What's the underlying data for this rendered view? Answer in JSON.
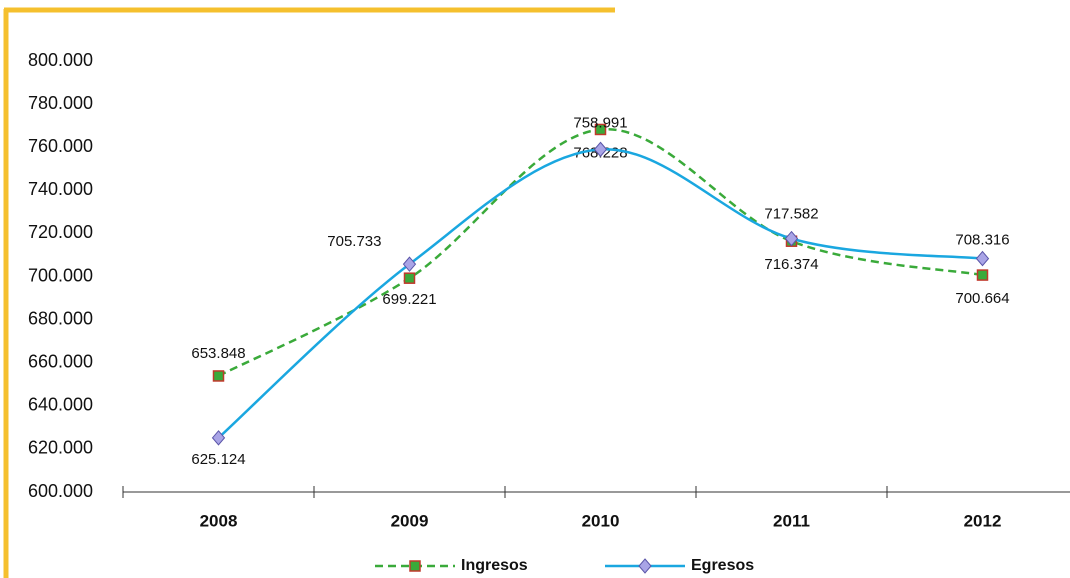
{
  "chart_data": {
    "type": "line",
    "categories": [
      "2008",
      "2009",
      "2010",
      "2011",
      "2012"
    ],
    "series": [
      {
        "name": "Ingresos",
        "color": "#3aaa3a",
        "values": [
          653848,
          699221,
          768228,
          716374,
          700664
        ],
        "value_labels": [
          "653.848",
          "699.221",
          "768.228",
          "716.374",
          "700.664"
        ]
      },
      {
        "name": "Egresos",
        "color": "#1aa7e0",
        "values": [
          625124,
          705733,
          758991,
          717582,
          708316
        ],
        "value_labels": [
          "625.124",
          "705.733",
          "758.991",
          "717.582",
          "708.316"
        ]
      }
    ],
    "ylim": [
      600000,
      800000
    ],
    "yticks": [
      {
        "value": 600000,
        "label": "600.000"
      },
      {
        "value": 620000,
        "label": "620.000"
      },
      {
        "value": 640000,
        "label": "640.000"
      },
      {
        "value": 660000,
        "label": "660.000"
      },
      {
        "value": 680000,
        "label": "680.000"
      },
      {
        "value": 700000,
        "label": "700.000"
      },
      {
        "value": 720000,
        "label": "720.000"
      },
      {
        "value": 740000,
        "label": "740.000"
      },
      {
        "value": 760000,
        "label": "760.000"
      },
      {
        "value": 780000,
        "label": "780.000"
      },
      {
        "value": 800000,
        "label": "800.000"
      }
    ],
    "legend": "bottom"
  }
}
